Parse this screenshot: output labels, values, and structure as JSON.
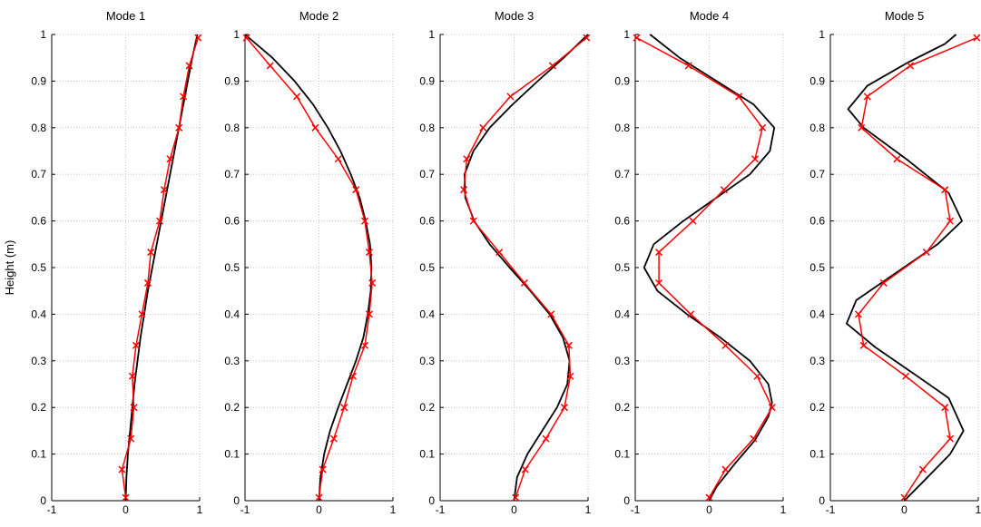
{
  "chart_data": [
    {
      "type": "line",
      "title": "Mode 1",
      "ylabel": "Height (m)",
      "xlim": [
        -1,
        1
      ],
      "ylim": [
        0,
        1
      ],
      "xticks": [
        -1,
        0,
        1
      ],
      "yticks": [
        0,
        0.1,
        0.2,
        0.3,
        0.4,
        0.5,
        0.6,
        0.7,
        0.8,
        0.9,
        1
      ],
      "grid": true,
      "series": [
        {
          "style": "black-curve",
          "color": "#000000",
          "points": [
            [
              0,
              0
            ],
            [
              0.01,
              0.05
            ],
            [
              0.03,
              0.1
            ],
            [
              0.06,
              0.15
            ],
            [
              0.09,
              0.2
            ],
            [
              0.12,
              0.25
            ],
            [
              0.16,
              0.3
            ],
            [
              0.2,
              0.35
            ],
            [
              0.25,
              0.4
            ],
            [
              0.3,
              0.45
            ],
            [
              0.36,
              0.5
            ],
            [
              0.42,
              0.55
            ],
            [
              0.48,
              0.6
            ],
            [
              0.54,
              0.65
            ],
            [
              0.6,
              0.7
            ],
            [
              0.66,
              0.75
            ],
            [
              0.72,
              0.8
            ],
            [
              0.78,
              0.85
            ],
            [
              0.84,
              0.9
            ],
            [
              0.9,
              0.95
            ],
            [
              0.97,
              1
            ]
          ]
        },
        {
          "style": "red-markers",
          "color": "#ff0000",
          "points": [
            [
              0,
              0.0067
            ],
            [
              -0.05,
              0.067
            ],
            [
              0.07,
              0.133
            ],
            [
              0.11,
              0.2
            ],
            [
              0.09,
              0.267
            ],
            [
              0.14,
              0.333
            ],
            [
              0.22,
              0.4
            ],
            [
              0.3,
              0.467
            ],
            [
              0.34,
              0.533
            ],
            [
              0.46,
              0.6
            ],
            [
              0.52,
              0.667
            ],
            [
              0.6,
              0.733
            ],
            [
              0.72,
              0.8
            ],
            [
              0.78,
              0.867
            ],
            [
              0.86,
              0.933
            ],
            [
              0.98,
              0.993
            ]
          ]
        }
      ]
    },
    {
      "type": "line",
      "title": "Mode 2",
      "xlim": [
        -1,
        1
      ],
      "ylim": [
        0,
        1
      ],
      "xticks": [
        -1,
        0,
        1
      ],
      "yticks": [
        0,
        0.1,
        0.2,
        0.3,
        0.4,
        0.5,
        0.6,
        0.7,
        0.8,
        0.9,
        1
      ],
      "grid": true,
      "series": [
        {
          "style": "black-curve",
          "color": "#000000",
          "points": [
            [
              0,
              0
            ],
            [
              0.02,
              0.05
            ],
            [
              0.07,
              0.1
            ],
            [
              0.15,
              0.15
            ],
            [
              0.26,
              0.2
            ],
            [
              0.38,
              0.25
            ],
            [
              0.5,
              0.3
            ],
            [
              0.6,
              0.35
            ],
            [
              0.66,
              0.4
            ],
            [
              0.7,
              0.45
            ],
            [
              0.71,
              0.5
            ],
            [
              0.69,
              0.55
            ],
            [
              0.63,
              0.6
            ],
            [
              0.55,
              0.65
            ],
            [
              0.43,
              0.7
            ],
            [
              0.29,
              0.75
            ],
            [
              0.12,
              0.8
            ],
            [
              -0.08,
              0.85
            ],
            [
              -0.33,
              0.9
            ],
            [
              -0.63,
              0.95
            ],
            [
              -1,
              1
            ]
          ]
        },
        {
          "style": "red-markers",
          "color": "#ff0000",
          "points": [
            [
              0,
              0.0067
            ],
            [
              0.05,
              0.067
            ],
            [
              0.2,
              0.133
            ],
            [
              0.34,
              0.2
            ],
            [
              0.46,
              0.267
            ],
            [
              0.62,
              0.333
            ],
            [
              0.68,
              0.4
            ],
            [
              0.72,
              0.467
            ],
            [
              0.68,
              0.533
            ],
            [
              0.62,
              0.6
            ],
            [
              0.5,
              0.667
            ],
            [
              0.26,
              0.733
            ],
            [
              -0.05,
              0.8
            ],
            [
              -0.3,
              0.867
            ],
            [
              -0.66,
              0.933
            ],
            [
              -0.98,
              0.993
            ]
          ]
        }
      ]
    },
    {
      "type": "line",
      "title": "Mode 3",
      "xlim": [
        -1,
        1
      ],
      "ylim": [
        0,
        1
      ],
      "xticks": [
        -1,
        0,
        1
      ],
      "yticks": [
        0,
        0.1,
        0.2,
        0.3,
        0.4,
        0.5,
        0.6,
        0.7,
        0.8,
        0.9,
        1
      ],
      "grid": true,
      "series": [
        {
          "style": "black-curve",
          "color": "#000000",
          "points": [
            [
              0,
              0
            ],
            [
              0.04,
              0.05
            ],
            [
              0.18,
              0.1
            ],
            [
              0.38,
              0.15
            ],
            [
              0.58,
              0.2
            ],
            [
              0.72,
              0.25
            ],
            [
              0.75,
              0.3
            ],
            [
              0.66,
              0.35
            ],
            [
              0.48,
              0.4
            ],
            [
              0.22,
              0.45
            ],
            [
              -0.06,
              0.5
            ],
            [
              -0.33,
              0.55
            ],
            [
              -0.54,
              0.6
            ],
            [
              -0.66,
              0.65
            ],
            [
              -0.67,
              0.7
            ],
            [
              -0.55,
              0.75
            ],
            [
              -0.33,
              0.8
            ],
            [
              -0.02,
              0.85
            ],
            [
              0.32,
              0.9
            ],
            [
              0.67,
              0.95
            ],
            [
              1,
              1
            ]
          ]
        },
        {
          "style": "red-markers",
          "color": "#ff0000",
          "points": [
            [
              0.02,
              0.0067
            ],
            [
              0.15,
              0.067
            ],
            [
              0.43,
              0.133
            ],
            [
              0.68,
              0.2
            ],
            [
              0.76,
              0.267
            ],
            [
              0.74,
              0.333
            ],
            [
              0.5,
              0.4
            ],
            [
              0.14,
              0.467
            ],
            [
              -0.2,
              0.533
            ],
            [
              -0.55,
              0.6
            ],
            [
              -0.68,
              0.667
            ],
            [
              -0.64,
              0.733
            ],
            [
              -0.42,
              0.8
            ],
            [
              -0.05,
              0.867
            ],
            [
              0.52,
              0.933
            ],
            [
              0.98,
              0.993
            ]
          ]
        }
      ]
    },
    {
      "type": "line",
      "title": "Mode 4",
      "xlim": [
        -1,
        1
      ],
      "ylim": [
        0,
        1
      ],
      "xticks": [
        -1,
        0,
        1
      ],
      "yticks": [
        0,
        0.1,
        0.2,
        0.3,
        0.4,
        0.5,
        0.6,
        0.7,
        0.8,
        0.9,
        1
      ],
      "grid": true,
      "series": [
        {
          "style": "black-curve",
          "color": "#000000",
          "points": [
            [
              0,
              0
            ],
            [
              0.1,
              0.03
            ],
            [
              0.35,
              0.08
            ],
            [
              0.62,
              0.13
            ],
            [
              0.8,
              0.18
            ],
            [
              0.85,
              0.21
            ],
            [
              0.8,
              0.25
            ],
            [
              0.55,
              0.3
            ],
            [
              0.15,
              0.35
            ],
            [
              -0.3,
              0.4
            ],
            [
              -0.7,
              0.45
            ],
            [
              -0.88,
              0.5
            ],
            [
              -0.75,
              0.55
            ],
            [
              -0.35,
              0.6
            ],
            [
              0.1,
              0.65
            ],
            [
              0.55,
              0.7
            ],
            [
              0.82,
              0.75
            ],
            [
              0.88,
              0.8
            ],
            [
              0.6,
              0.85
            ],
            [
              0.1,
              0.9
            ],
            [
              -0.4,
              0.95
            ],
            [
              -0.8,
              1
            ]
          ]
        },
        {
          "style": "red-markers",
          "color": "#ff0000",
          "points": [
            [
              0,
              0.0067
            ],
            [
              0.22,
              0.067
            ],
            [
              0.6,
              0.133
            ],
            [
              0.85,
              0.2
            ],
            [
              0.65,
              0.267
            ],
            [
              0.22,
              0.333
            ],
            [
              -0.25,
              0.4
            ],
            [
              -0.68,
              0.467
            ],
            [
              -0.68,
              0.533
            ],
            [
              -0.22,
              0.6
            ],
            [
              0.2,
              0.667
            ],
            [
              0.62,
              0.733
            ],
            [
              0.72,
              0.8
            ],
            [
              0.4,
              0.867
            ],
            [
              -0.28,
              0.933
            ],
            [
              -0.98,
              0.993
            ]
          ]
        }
      ]
    },
    {
      "type": "line",
      "title": "Mode 5",
      "xlim": [
        -1,
        1
      ],
      "ylim": [
        0,
        1
      ],
      "xticks": [
        -1,
        0,
        1
      ],
      "yticks": [
        0,
        0.1,
        0.2,
        0.3,
        0.4,
        0.5,
        0.6,
        0.7,
        0.8,
        0.9,
        1
      ],
      "grid": true,
      "series": [
        {
          "style": "black-curve",
          "color": "#000000",
          "points": [
            [
              0,
              0
            ],
            [
              0.25,
              0.04
            ],
            [
              0.62,
              0.1
            ],
            [
              0.8,
              0.15
            ],
            [
              0.6,
              0.22
            ],
            [
              0.15,
              0.27
            ],
            [
              -0.4,
              0.33
            ],
            [
              -0.78,
              0.38
            ],
            [
              -0.65,
              0.43
            ],
            [
              -0.1,
              0.49
            ],
            [
              0.45,
              0.55
            ],
            [
              0.78,
              0.6
            ],
            [
              0.6,
              0.66
            ],
            [
              0.05,
              0.73
            ],
            [
              -0.55,
              0.8
            ],
            [
              -0.76,
              0.84
            ],
            [
              -0.5,
              0.89
            ],
            [
              0.05,
              0.94
            ],
            [
              0.55,
              0.98
            ],
            [
              0.7,
              1
            ]
          ]
        },
        {
          "style": "red-markers",
          "color": "#ff0000",
          "points": [
            [
              0,
              0.0067
            ],
            [
              0.25,
              0.067
            ],
            [
              0.62,
              0.133
            ],
            [
              0.55,
              0.2
            ],
            [
              0.02,
              0.267
            ],
            [
              -0.55,
              0.333
            ],
            [
              -0.62,
              0.4
            ],
            [
              -0.28,
              0.467
            ],
            [
              0.3,
              0.533
            ],
            [
              0.62,
              0.6
            ],
            [
              0.55,
              0.667
            ],
            [
              -0.1,
              0.733
            ],
            [
              -0.58,
              0.8
            ],
            [
              -0.5,
              0.867
            ],
            [
              0.08,
              0.933
            ],
            [
              0.98,
              0.993
            ]
          ]
        }
      ]
    }
  ]
}
